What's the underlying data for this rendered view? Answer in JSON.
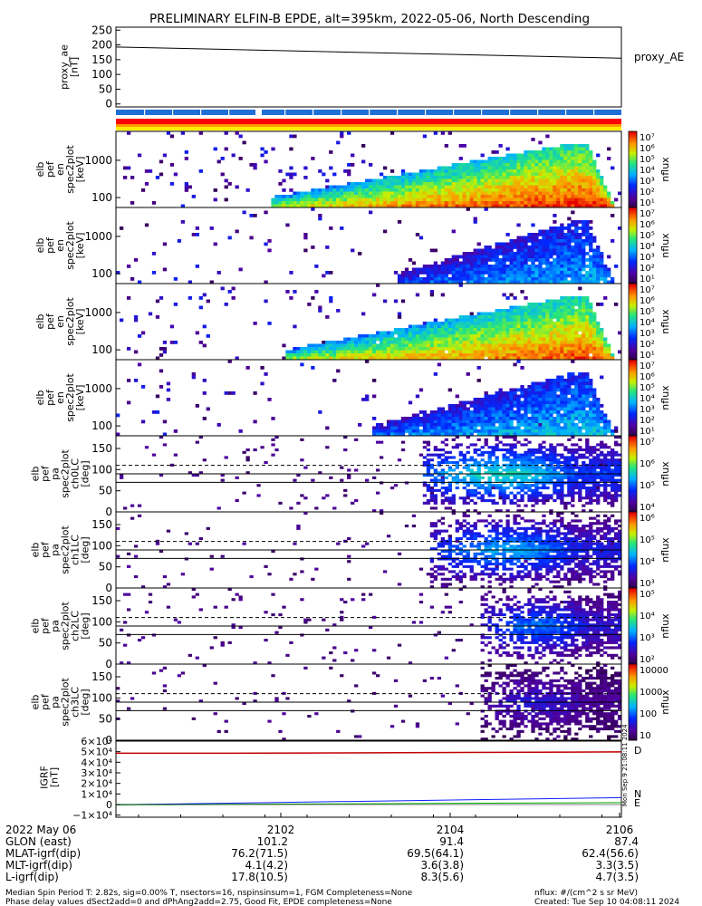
{
  "title": "PRELIMINARY ELFIN-B EPDE, alt=395km, 2022-05-06, North Descending",
  "colors": {
    "frame": "#000000",
    "bar_blue": "#1f6fd6",
    "bar_red": "#ff0000",
    "bar_orange": "#ff9900",
    "bar_yellow": "#ffee00",
    "grf_d": "#c00000",
    "grf_n": "#1020ff",
    "grf_e": "#00b000"
  },
  "chart_data": [
    {
      "type": "line",
      "panel": "proxy_ae",
      "ylabel": [
        "proxy_ae",
        "[nT]"
      ],
      "ylim": [
        -10,
        260
      ],
      "yticks": [
        "250",
        "200",
        "150",
        "100",
        "50",
        "0"
      ],
      "legend": "proxy_AE",
      "series": [
        {
          "name": "proxy_AE",
          "x": [
            0,
            1
          ],
          "y": [
            193,
            155
          ]
        }
      ]
    },
    {
      "type": "heatmap",
      "panel": "en-1",
      "ylabel": [
        "elb",
        "pef",
        "en",
        "spec2plot",
        "[keV]"
      ],
      "ylog": true,
      "yticks": [
        "1000",
        "100"
      ],
      "cbar": {
        "label": "nflux",
        "ticks": [
          "10⁷",
          "10⁶",
          "10⁵",
          "10⁴",
          "10³",
          "10²",
          "10¹"
        ]
      }
    },
    {
      "type": "heatmap",
      "panel": "en-2",
      "ylabel": [
        "elb",
        "pef",
        "en",
        "spec2plot",
        "[keV]"
      ],
      "ylog": true,
      "yticks": [
        "1000",
        "100"
      ],
      "cbar": {
        "label": "nflux",
        "ticks": [
          "10⁷",
          "10⁶",
          "10⁵",
          "10⁴",
          "10³",
          "10²",
          "10¹"
        ]
      }
    },
    {
      "type": "heatmap",
      "panel": "en-3",
      "ylabel": [
        "elb",
        "pef",
        "en",
        "spec2plot",
        "[keV]"
      ],
      "ylog": true,
      "yticks": [
        "1000",
        "100"
      ],
      "cbar": {
        "label": "nflux",
        "ticks": [
          "10⁷",
          "10⁶",
          "10⁵",
          "10⁴",
          "10³",
          "10²",
          "10¹"
        ]
      }
    },
    {
      "type": "heatmap",
      "panel": "en-4",
      "ylabel": [
        "elb",
        "pef",
        "en",
        "spec2plot",
        "[keV]"
      ],
      "ylog": true,
      "yticks": [
        "1000",
        "100"
      ],
      "cbar": {
        "label": "nflux",
        "ticks": [
          "10⁷",
          "10⁶",
          "10⁵",
          "10⁴",
          "10³",
          "10²",
          "10¹"
        ]
      }
    },
    {
      "type": "heatmap",
      "panel": "ch0",
      "ylabel": [
        "elb",
        "pef",
        "pa",
        "spec2plot",
        "ch0LC",
        "[deg]"
      ],
      "ylim": [
        0,
        180
      ],
      "yticks": [
        "150",
        "100",
        "50",
        "0"
      ],
      "cbar": {
        "label": "nflux",
        "ticks": [
          "10⁷",
          "10⁶",
          "10⁵",
          "10⁴"
        ]
      }
    },
    {
      "type": "heatmap",
      "panel": "ch1",
      "ylabel": [
        "elb",
        "pef",
        "pa",
        "spec2plot",
        "ch1LC",
        "[deg]"
      ],
      "ylim": [
        0,
        180
      ],
      "yticks": [
        "150",
        "100",
        "50",
        "0"
      ],
      "cbar": {
        "label": "nflux",
        "ticks": [
          "10⁶",
          "10⁵",
          "10⁴",
          "10³"
        ]
      }
    },
    {
      "type": "heatmap",
      "panel": "ch2",
      "ylabel": [
        "elb",
        "pef",
        "pa",
        "spec2plot",
        "ch2LC",
        "[deg]"
      ],
      "ylim": [
        0,
        180
      ],
      "yticks": [
        "150",
        "100",
        "50",
        "0"
      ],
      "cbar": {
        "label": "nflux",
        "ticks": [
          "10⁵",
          "10⁴",
          "10³",
          "10²"
        ]
      }
    },
    {
      "type": "heatmap",
      "panel": "ch3",
      "ylabel": [
        "elb",
        "pef",
        "pa",
        "spec2plot",
        "ch3LC",
        "[deg]"
      ],
      "ylim": [
        0,
        180
      ],
      "yticks": [
        "150",
        "100",
        "50",
        "0"
      ],
      "cbar": {
        "label": "nflux",
        "ticks": [
          "10000",
          "1000",
          "100",
          "10"
        ]
      }
    },
    {
      "type": "line",
      "panel": "grf",
      "ylabel": [
        "IGRF",
        "[nT]"
      ],
      "ylim": [
        -12000,
        60000
      ],
      "yticks": [
        "6×10⁴",
        "5×10⁴",
        "4×10⁴",
        "3×10⁴",
        "2×10⁴",
        "1×10⁴",
        "0",
        "−1×10⁴"
      ],
      "series": [
        {
          "name": "D",
          "x": [
            0,
            0.3,
            1
          ],
          "y": [
            48500,
            48600,
            49800
          ]
        },
        {
          "name": "N",
          "x": [
            0,
            1
          ],
          "y": [
            -200,
            6500
          ]
        },
        {
          "name": "E",
          "x": [
            0,
            1
          ],
          "y": [
            -300,
            1800
          ]
        }
      ],
      "side_stamp": "Mon Sep 9 21:08:11 2024"
    }
  ],
  "time_axis": {
    "ticks": [
      "2102",
      "2104",
      "2106"
    ]
  },
  "ephemeris": {
    "labels": [
      "2022 May 06",
      "GLON (east)",
      "MLAT-igrf(dip)",
      "MLT-igrf(dip)",
      "L-igrf(dip)"
    ],
    "col1": [
      "2102",
      "101.2",
      "76.2(71.5)",
      "4.1(4.2)",
      "17.8(10.5)"
    ],
    "col2": [
      "2104",
      "91.4",
      "69.5(64.1)",
      "3.6(3.8)",
      "8.3(5.6)"
    ],
    "col3": [
      "2106",
      "87.4",
      "62.4(56.6)",
      "3.3(3.5)",
      "4.7(3.5)"
    ]
  },
  "footer": {
    "line1_left": "Median Spin Period T: 2.82s, sig=0.00% T, nsectors=16, nspinsinsum=1, FGM Completeness=None",
    "line1_right": "nflux: #/(cm^2 s sr MeV)",
    "line2_left": "Phase delay values dSect2add=0 and dPhAng2add=2.75, Good Fit, EPDE completeness=None",
    "line2_right": "Created: Tue Sep 10 04:08:11 2024"
  }
}
